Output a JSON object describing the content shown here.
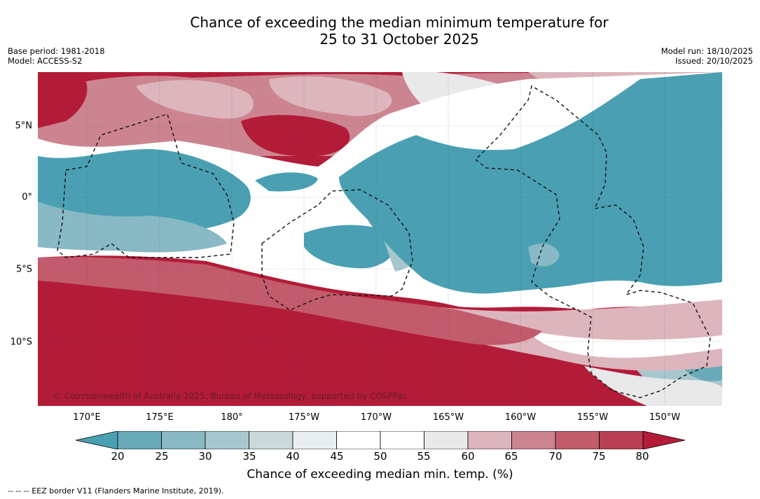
{
  "title": {
    "line1": "Chance of exceeding the median minimum temperature for",
    "line2": "25 to 31 October 2025"
  },
  "meta": {
    "base_period": "Base period: 1981-2018",
    "model": "Model: ACCESS-S2",
    "model_run": "Model run: 18/10/2025",
    "issued": "Issued: 20/10/2025"
  },
  "map": {
    "lat_labels": [
      "5°N",
      "0°",
      "5°S",
      "10°S"
    ],
    "lon_labels": [
      "170°E",
      "175°E",
      "180°",
      "175°W",
      "170°W",
      "165°W",
      "160°W",
      "155°W",
      "150°W"
    ],
    "copyright": "© Commonwealth of Australia 2025, Bureau of Meteorology, supported by COSPPac",
    "regions": [
      {
        "name": "northwest-warm",
        "category": "above 80"
      },
      {
        "name": "equatorial-cool-band",
        "category": "below 20"
      },
      {
        "name": "eastern-cool-region",
        "category": "below 20"
      },
      {
        "name": "southern-warm-region",
        "category": "above 80"
      }
    ]
  },
  "colorbar": {
    "ticks": [
      "20",
      "25",
      "30",
      "35",
      "40",
      "45",
      "50",
      "55",
      "60",
      "65",
      "70",
      "75",
      "80"
    ],
    "colors": [
      "#4aa0b2",
      "#69a9b8",
      "#88b9c4",
      "#a7c7ce",
      "#cbd9db",
      "#e9eff1",
      "#ffffff",
      "#ffffff",
      "#e9e9ea",
      "#ddb5bd",
      "#cc8590",
      "#c25b6c",
      "#b93f55",
      "#b31c38"
    ],
    "label": "Chance of exceeding median min. temp. (%)"
  },
  "footnote": "--  --  -- EEZ border V11 (Flanders Marine Institute, 2019)."
}
